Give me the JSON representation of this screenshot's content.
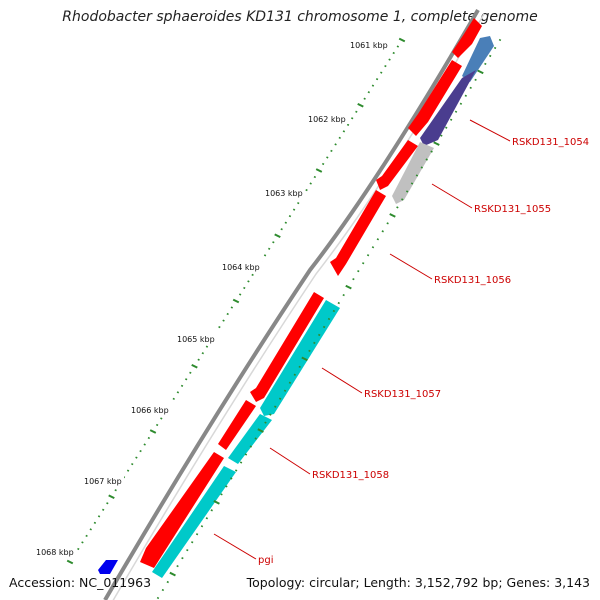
{
  "title": "Rhodobacter sphaeroides KD131 chromosome 1, complete genome",
  "footer": {
    "accession": "Accession: NC_011963",
    "summary": "Topology: circular; Length: 3,152,792 bp; Genes: 3,143"
  },
  "ticks": [
    "1061 kbp",
    "1062 kbp",
    "1063 kbp",
    "1064 kbp",
    "1065 kbp",
    "1066 kbp",
    "1067 kbp",
    "1068 kbp"
  ],
  "genes": [
    {
      "label": "RSKD131_1054",
      "color": "#4a3d8f"
    },
    {
      "label": "RSKD131_1055",
      "color": "#c0c0c0"
    },
    {
      "label": "RSKD131_1056",
      "color": "#ff0000"
    },
    {
      "label": "RSKD131_1057",
      "color": "#00c9c9"
    },
    {
      "label": "RSKD131_1058",
      "color": "#00c9c9"
    },
    {
      "label": "pgi",
      "color": "#00c9c9"
    }
  ],
  "colors": {
    "label_text": "#cc0000",
    "leader_line": "#cc0000",
    "backbone": "#888888",
    "tick": "#2e8b2e",
    "cds_forward": "#ff0000",
    "cds_reverse_blue": "#4a7fb8",
    "marker_blue": "#0000ee"
  }
}
